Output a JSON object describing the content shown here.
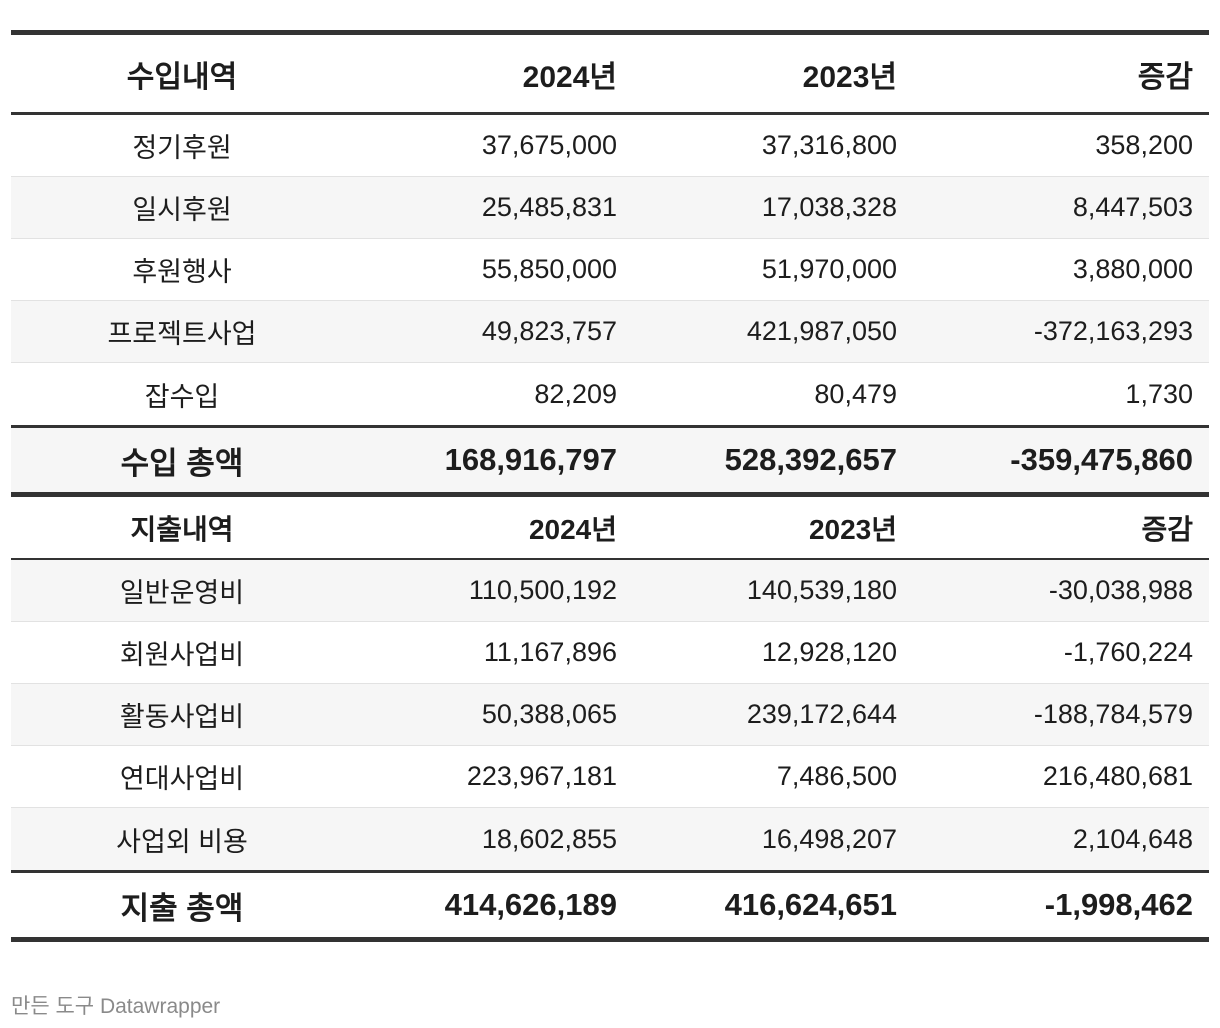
{
  "income": {
    "header": {
      "label": "수입내역",
      "y2024": "2024년",
      "y2023": "2023년",
      "change": "증감"
    },
    "rows": [
      {
        "label": "정기후원",
        "y2024": "37,675,000",
        "y2023": "37,316,800",
        "change": "358,200"
      },
      {
        "label": "일시후원",
        "y2024": "25,485,831",
        "y2023": "17,038,328",
        "change": "8,447,503"
      },
      {
        "label": "후원행사",
        "y2024": "55,850,000",
        "y2023": "51,970,000",
        "change": "3,880,000"
      },
      {
        "label": "프로젝트사업",
        "y2024": "49,823,757",
        "y2023": "421,987,050",
        "change": "-372,163,293"
      },
      {
        "label": "잡수입",
        "y2024": "82,209",
        "y2023": "80,479",
        "change": "1,730"
      }
    ],
    "total": {
      "label": "수입 총액",
      "y2024": "168,916,797",
      "y2023": "528,392,657",
      "change": "-359,475,860"
    }
  },
  "expense": {
    "header": {
      "label": "지출내역",
      "y2024": "2024년",
      "y2023": "2023년",
      "change": "증감"
    },
    "rows": [
      {
        "label": "일반운영비",
        "y2024": "110,500,192",
        "y2023": "140,539,180",
        "change": "-30,038,988"
      },
      {
        "label": "회원사업비",
        "y2024": "11,167,896",
        "y2023": "12,928,120",
        "change": "-1,760,224"
      },
      {
        "label": "활동사업비",
        "y2024": "50,388,065",
        "y2023": "239,172,644",
        "change": "-188,784,579"
      },
      {
        "label": "연대사업비",
        "y2024": "223,967,181",
        "y2023": "7,486,500",
        "change": "216,480,681"
      },
      {
        "label": "사업외 비용",
        "y2024": "18,602,855",
        "y2023": "16,498,207",
        "change": "2,104,648"
      }
    ],
    "total": {
      "label": "지출 총액",
      "y2024": "414,626,189",
      "y2023": "416,624,651",
      "change": "-1,998,462"
    }
  },
  "footer": {
    "credit": "만든 도구 Datawrapper"
  }
}
